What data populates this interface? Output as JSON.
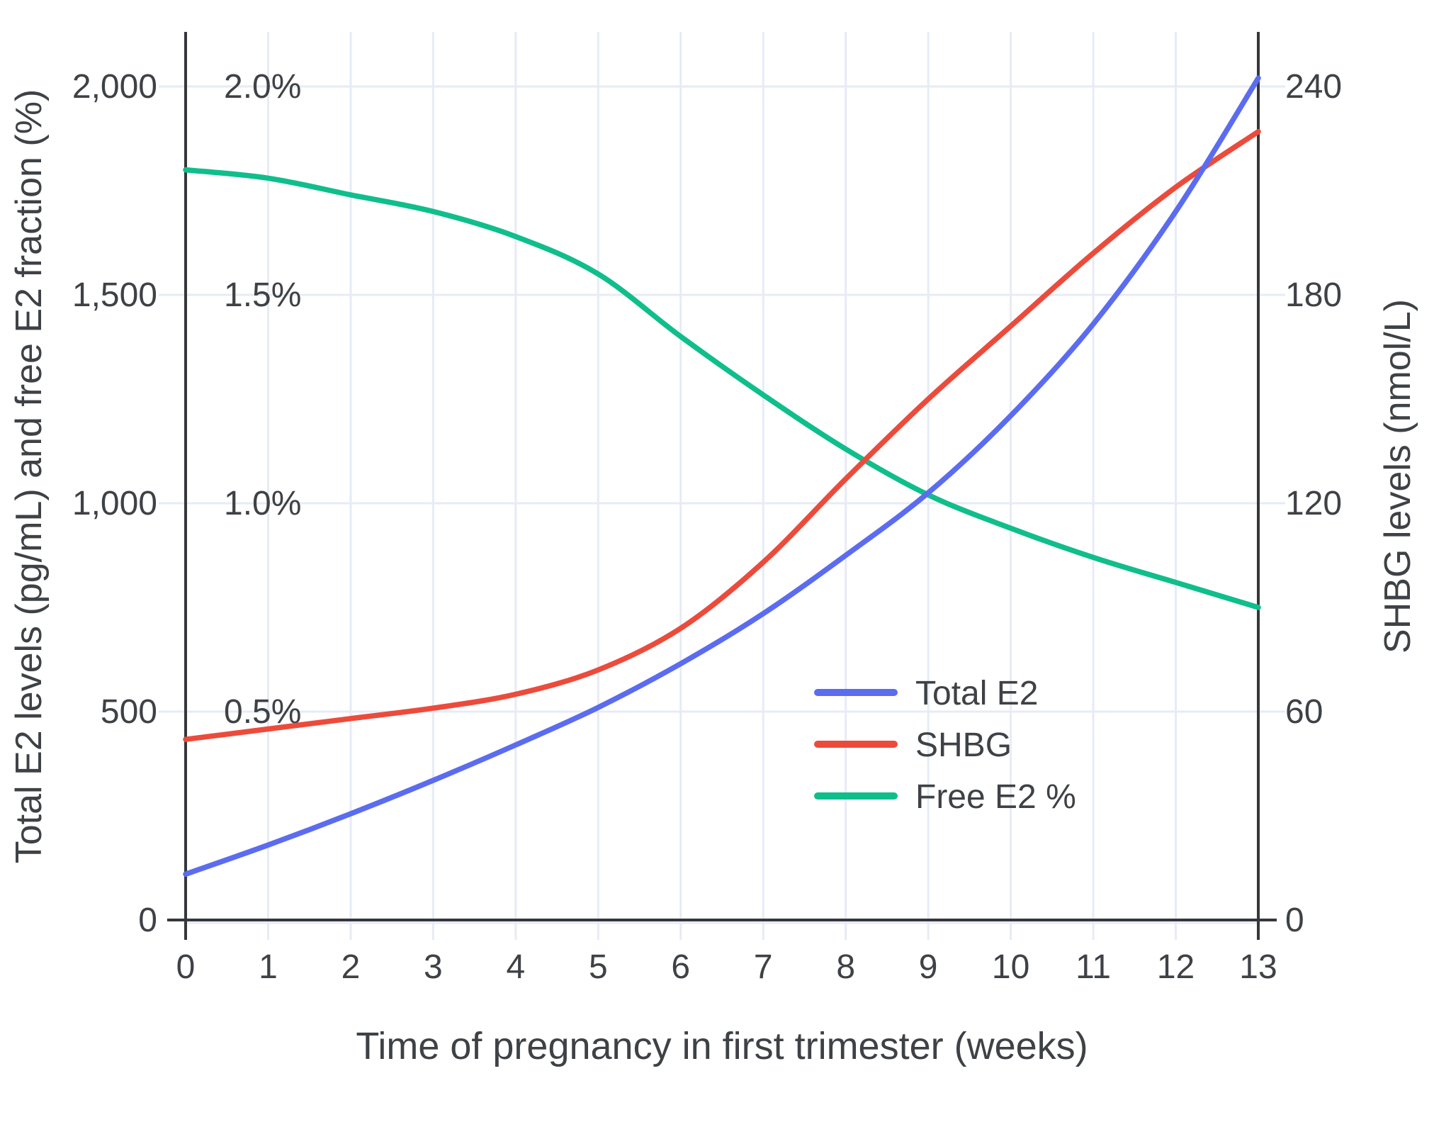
{
  "chart_data": {
    "type": "line",
    "x": [
      0,
      1,
      2,
      3,
      4,
      5,
      6,
      7,
      8,
      9,
      10,
      11,
      12,
      13
    ],
    "x_label": "Time of pregnancy in first trimester (weeks)",
    "y_left_label": "Total E2 levels (pg/mL) and free E2 fraction (%)",
    "y_right_label": "SHBG levels (nmol/L)",
    "x_range": [
      0,
      13
    ],
    "y_left_range": [
      0,
      2000
    ],
    "y_percent_range": [
      0,
      2.0
    ],
    "y_right_range": [
      0,
      240
    ],
    "grid": true,
    "legend_position": "inside-right",
    "x_tick_labels": [
      "0",
      "1",
      "2",
      "3",
      "4",
      "5",
      "6",
      "7",
      "8",
      "9",
      "10",
      "11",
      "12",
      "13"
    ],
    "y_left_ticks": {
      "values": [
        0,
        500,
        1000,
        1500,
        2000
      ],
      "labels": [
        "0",
        "500",
        "1,000",
        "1,500",
        "2,000"
      ]
    },
    "y_percent_ticks": {
      "values": [
        0.5,
        1.0,
        1.5,
        2.0
      ],
      "labels": [
        "0.5%",
        "1.0%",
        "1.5%",
        "2.0%"
      ]
    },
    "y_right_ticks": {
      "values": [
        0,
        60,
        120,
        180,
        240
      ],
      "labels": [
        "0",
        "60",
        "120",
        "180",
        "240"
      ]
    },
    "series": [
      {
        "name": "Total E2",
        "axis": "left",
        "color": "#5B6CF0",
        "unit": "pg/mL",
        "values": [
          110,
          180,
          255,
          335,
          420,
          510,
          615,
          735,
          875,
          1025,
          1210,
          1430,
          1700,
          2020
        ]
      },
      {
        "name": "SHBG",
        "axis": "right",
        "color": "#EC4B3C",
        "unit": "nmol/L",
        "values": [
          52,
          55,
          58,
          61,
          65,
          72,
          84,
          103,
          127,
          150,
          171,
          192,
          211,
          227
        ]
      },
      {
        "name": "Free E2 %",
        "axis": "percent",
        "color": "#10BE8C",
        "unit": "%",
        "values": [
          1.8,
          1.78,
          1.74,
          1.7,
          1.64,
          1.55,
          1.4,
          1.26,
          1.13,
          1.02,
          0.94,
          0.87,
          0.81,
          0.75
        ]
      }
    ]
  },
  "colors": {
    "background": "#ffffff",
    "grid": "#E7EBF6",
    "axis": "#35373B",
    "text": "#3E4145",
    "total_e2": "#5B6CF0",
    "shbg": "#EC4B3C",
    "free_e2": "#10BE8C"
  }
}
